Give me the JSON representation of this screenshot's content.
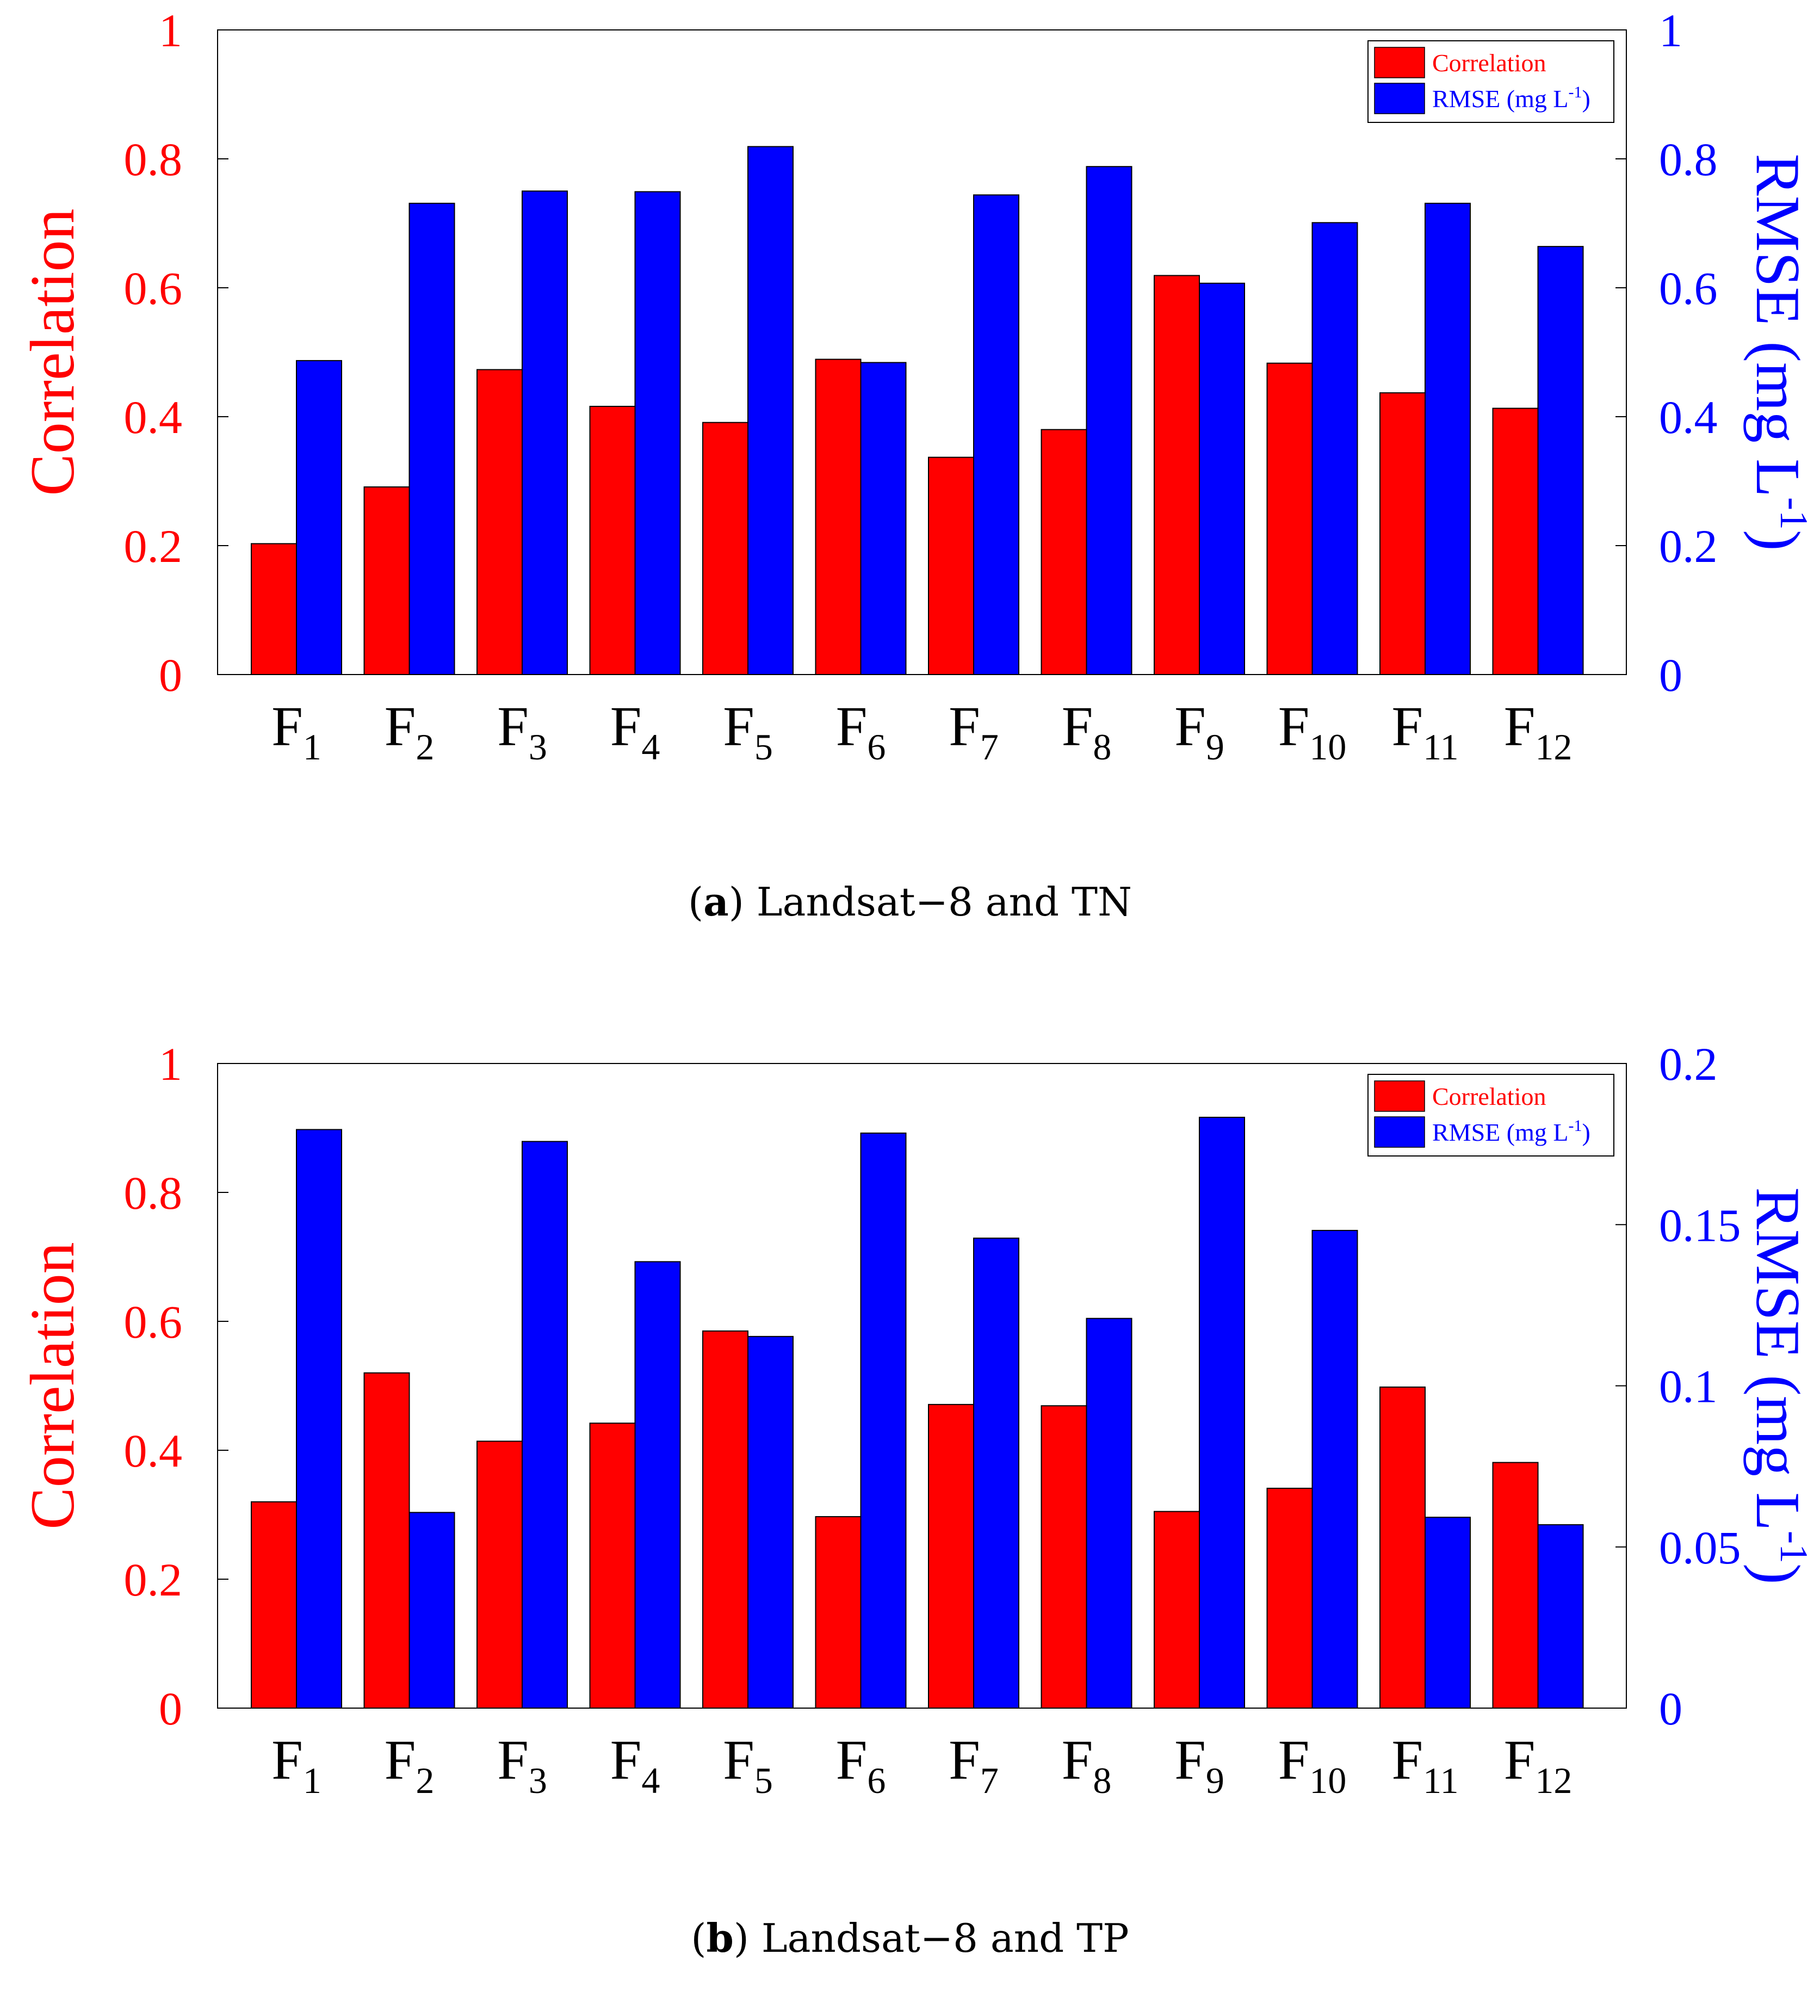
{
  "chart_data": [
    {
      "type": "bar",
      "panel_label": "a",
      "caption": "Landsat−8 and TN",
      "categories": [
        {
          "base": "F",
          "sub": "1"
        },
        {
          "base": "F",
          "sub": "2"
        },
        {
          "base": "F",
          "sub": "3"
        },
        {
          "base": "F",
          "sub": "4"
        },
        {
          "base": "F",
          "sub": "5"
        },
        {
          "base": "F",
          "sub": "6"
        },
        {
          "base": "F",
          "sub": "7"
        },
        {
          "base": "F",
          "sub": "8"
        },
        {
          "base": "F",
          "sub": "9"
        },
        {
          "base": "F",
          "sub": "10"
        },
        {
          "base": "F",
          "sub": "11"
        },
        {
          "base": "F",
          "sub": "12"
        }
      ],
      "series": [
        {
          "name": "Correlation",
          "axis": "left",
          "color": "#ff0000",
          "values": [
            0.203,
            0.291,
            0.473,
            0.416,
            0.391,
            0.489,
            0.337,
            0.38,
            0.619,
            0.483,
            0.437,
            0.413
          ]
        },
        {
          "name": "RMSE",
          "axis": "right",
          "color": "#0000ff",
          "values": [
            0.487,
            0.731,
            0.75,
            0.749,
            0.819,
            0.484,
            0.744,
            0.788,
            0.607,
            0.701,
            0.731,
            0.664
          ]
        }
      ],
      "legend": [
        {
          "label": "Correlation",
          "color": "#ff0000"
        },
        {
          "label": "RMSE (mg L",
          "sup": "-1",
          "tail": ")",
          "color": "#0000ff"
        }
      ],
      "legend_position": "top-right",
      "ylabel_left": "Correlation",
      "ylabel_right": {
        "text": "RMSE (mg L",
        "sup": "-1",
        "tail": ")"
      },
      "ylim_left": [
        0,
        1
      ],
      "ylim_right": [
        0,
        1
      ],
      "yticks_left": [
        {
          "v": 0,
          "label": "0"
        },
        {
          "v": 0.2,
          "label": "0.2"
        },
        {
          "v": 0.4,
          "label": "0.4"
        },
        {
          "v": 0.6,
          "label": "0.6"
        },
        {
          "v": 0.8,
          "label": "0.8"
        },
        {
          "v": 1,
          "label": "1"
        }
      ],
      "yticks_right": [
        {
          "v": 0,
          "label": "0"
        },
        {
          "v": 0.2,
          "label": "0.2"
        },
        {
          "v": 0.4,
          "label": "0.4"
        },
        {
          "v": 0.6,
          "label": "0.6"
        },
        {
          "v": 0.8,
          "label": "0.8"
        },
        {
          "v": 1,
          "label": "1"
        }
      ],
      "colors": {
        "left_axis": "#ff0000",
        "right_axis": "#0000ff"
      }
    },
    {
      "type": "bar",
      "panel_label": "b",
      "caption": "Landsat−8 and TP",
      "categories": [
        {
          "base": "F",
          "sub": "1"
        },
        {
          "base": "F",
          "sub": "2"
        },
        {
          "base": "F",
          "sub": "3"
        },
        {
          "base": "F",
          "sub": "4"
        },
        {
          "base": "F",
          "sub": "5"
        },
        {
          "base": "F",
          "sub": "6"
        },
        {
          "base": "F",
          "sub": "7"
        },
        {
          "base": "F",
          "sub": "8"
        },
        {
          "base": "F",
          "sub": "9"
        },
        {
          "base": "F",
          "sub": "10"
        },
        {
          "base": "F",
          "sub": "11"
        },
        {
          "base": "F",
          "sub": "12"
        }
      ],
      "series": [
        {
          "name": "Correlation",
          "axis": "left",
          "color": "#ff0000",
          "values": [
            0.32,
            0.52,
            0.414,
            0.442,
            0.585,
            0.297,
            0.471,
            0.469,
            0.305,
            0.341,
            0.498,
            0.381
          ]
        },
        {
          "name": "RMSE",
          "axis": "right",
          "color": "#0000ff",
          "values": [
            0.1795,
            0.0607,
            0.1758,
            0.1385,
            0.1153,
            0.1784,
            0.1458,
            0.1209,
            0.1833,
            0.1482,
            0.0592,
            0.0569
          ]
        }
      ],
      "legend": [
        {
          "label": "Correlation",
          "color": "#ff0000"
        },
        {
          "label": "RMSE (mg L",
          "sup": "-1",
          "tail": ")",
          "color": "#0000ff"
        }
      ],
      "legend_position": "top-right",
      "ylabel_left": "Correlation",
      "ylabel_right": {
        "text": "RMSE (mg L",
        "sup": "-1",
        "tail": ")"
      },
      "ylim_left": [
        0,
        1
      ],
      "ylim_right": [
        0,
        0.2
      ],
      "yticks_left": [
        {
          "v": 0,
          "label": "0"
        },
        {
          "v": 0.2,
          "label": "0.2"
        },
        {
          "v": 0.4,
          "label": "0.4"
        },
        {
          "v": 0.6,
          "label": "0.6"
        },
        {
          "v": 0.8,
          "label": "0.8"
        },
        {
          "v": 1,
          "label": "1"
        }
      ],
      "yticks_right": [
        {
          "v": 0,
          "label": "0"
        },
        {
          "v": 0.05,
          "label": "0.05"
        },
        {
          "v": 0.1,
          "label": "0.1"
        },
        {
          "v": 0.15,
          "label": "0.15"
        },
        {
          "v": 0.2,
          "label": "0.2"
        }
      ],
      "colors": {
        "left_axis": "#ff0000",
        "right_axis": "#0000ff"
      }
    }
  ]
}
